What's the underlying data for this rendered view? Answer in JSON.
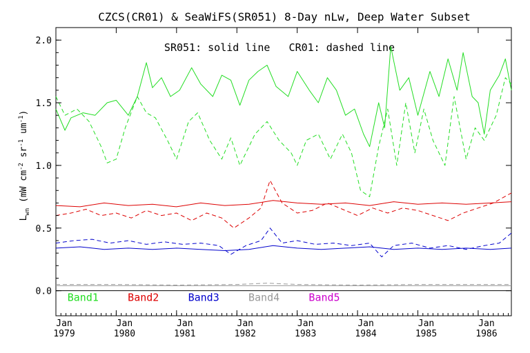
{
  "chart_data": {
    "type": "line",
    "title": "CZCS(CR01) & SeaWiFS(SR051) 8-Day nLw, Deep Water Subset",
    "annotation": "SR051: solid line   CR01: dashed line",
    "ylabel": {
      "base": "L",
      "sub": "wn",
      "units_open": " (mW cm",
      "exp1": "-2",
      "mid1": " sr",
      "exp2": "-1",
      "mid2": " um",
      "exp3": "-1",
      "units_close": ")"
    },
    "xlim": [
      1979.0,
      1986.55
    ],
    "ylim": [
      -0.2,
      2.1
    ],
    "yticks": [
      {
        "value": 0.0,
        "label": "0.0"
      },
      {
        "value": 0.5,
        "label": "0.5"
      },
      {
        "value": 1.0,
        "label": "1.0"
      },
      {
        "value": 1.5,
        "label": "1.5"
      },
      {
        "value": 2.0,
        "label": "2.0"
      }
    ],
    "xticks": [
      {
        "value": 1979.0,
        "month": "Jan",
        "year": "1979"
      },
      {
        "value": 1980.0,
        "month": "Jan",
        "year": "1980"
      },
      {
        "value": 1981.0,
        "month": "Jan",
        "year": "1981"
      },
      {
        "value": 1982.0,
        "month": "Jan",
        "year": "1982"
      },
      {
        "value": 1983.0,
        "month": "Jan",
        "year": "1983"
      },
      {
        "value": 1984.0,
        "month": "Jan",
        "year": "1984"
      },
      {
        "value": 1985.0,
        "month": "Jan",
        "year": "1985"
      },
      {
        "value": 1986.0,
        "month": "Jan",
        "year": "1986"
      }
    ],
    "zero_line": 0.0,
    "legend": [
      {
        "label": "Band1",
        "color": "#22dd22",
        "x": 1979.45
      },
      {
        "label": "Band2",
        "color": "#dd0000",
        "x": 1980.45
      },
      {
        "label": "Band3",
        "color": "#0000cc",
        "x": 1981.45
      },
      {
        "label": "Band4",
        "color": "#999999",
        "x": 1982.45
      },
      {
        "label": "Band5",
        "color": "#cc00cc",
        "x": 1983.45
      }
    ],
    "legend_y": -0.05,
    "series": [
      {
        "band": "Band1",
        "sensor": "SR051",
        "style": "solid",
        "color": "#22dd22",
        "x": [
          1979.0,
          1979.15,
          1979.25,
          1979.45,
          1979.65,
          1979.85,
          1980.0,
          1980.2,
          1980.35,
          1980.5,
          1980.6,
          1980.75,
          1980.9,
          1981.05,
          1981.25,
          1981.4,
          1981.6,
          1981.75,
          1981.9,
          1982.05,
          1982.2,
          1982.35,
          1982.5,
          1982.65,
          1982.85,
          1983.0,
          1983.2,
          1983.35,
          1983.5,
          1983.65,
          1983.8,
          1983.95,
          1984.1,
          1984.2,
          1984.35,
          1984.45,
          1984.55,
          1984.7,
          1984.85,
          1985.0,
          1985.2,
          1985.35,
          1985.5,
          1985.65,
          1985.75,
          1985.9,
          1986.0,
          1986.1,
          1986.2,
          1986.35,
          1986.45,
          1986.55
        ],
        "y": [
          1.45,
          1.28,
          1.38,
          1.42,
          1.4,
          1.5,
          1.52,
          1.4,
          1.55,
          1.82,
          1.62,
          1.7,
          1.55,
          1.6,
          1.78,
          1.65,
          1.55,
          1.72,
          1.68,
          1.48,
          1.68,
          1.75,
          1.8,
          1.63,
          1.55,
          1.75,
          1.6,
          1.5,
          1.7,
          1.6,
          1.4,
          1.45,
          1.25,
          1.15,
          1.5,
          1.3,
          1.95,
          1.6,
          1.7,
          1.4,
          1.75,
          1.55,
          1.85,
          1.6,
          1.9,
          1.55,
          1.5,
          1.25,
          1.6,
          1.72,
          1.85,
          1.6
        ]
      },
      {
        "band": "Band1",
        "sensor": "CR01",
        "style": "dashed",
        "color": "#22dd22",
        "x": [
          1979.0,
          1979.15,
          1979.35,
          1979.55,
          1979.75,
          1979.85,
          1980.0,
          1980.15,
          1980.35,
          1980.5,
          1980.65,
          1980.85,
          1981.0,
          1981.2,
          1981.35,
          1981.55,
          1981.75,
          1981.9,
          1982.05,
          1982.3,
          1982.5,
          1982.7,
          1982.9,
          1983.0,
          1983.15,
          1983.35,
          1983.55,
          1983.75,
          1983.9,
          1984.05,
          1984.2,
          1984.35,
          1984.5,
          1984.65,
          1984.8,
          1984.95,
          1985.1,
          1985.25,
          1985.45,
          1985.6,
          1985.8,
          1985.95,
          1986.1,
          1986.3,
          1986.45,
          1986.55
        ],
        "y": [
          1.55,
          1.4,
          1.45,
          1.35,
          1.15,
          1.02,
          1.05,
          1.3,
          1.55,
          1.42,
          1.38,
          1.2,
          1.05,
          1.35,
          1.42,
          1.2,
          1.05,
          1.22,
          1.0,
          1.25,
          1.35,
          1.2,
          1.1,
          1.0,
          1.2,
          1.25,
          1.05,
          1.25,
          1.1,
          0.8,
          0.75,
          1.15,
          1.45,
          1.0,
          1.5,
          1.1,
          1.45,
          1.2,
          1.0,
          1.55,
          1.05,
          1.3,
          1.2,
          1.4,
          1.7,
          1.65
        ]
      },
      {
        "band": "Band2",
        "sensor": "SR051",
        "style": "solid",
        "color": "#dd0000",
        "x": [
          1979.0,
          1979.4,
          1979.8,
          1980.2,
          1980.6,
          1981.0,
          1981.4,
          1981.8,
          1982.2,
          1982.6,
          1983.0,
          1983.4,
          1983.8,
          1984.2,
          1984.6,
          1985.0,
          1985.4,
          1985.8,
          1986.2,
          1986.55
        ],
        "y": [
          0.68,
          0.67,
          0.7,
          0.68,
          0.69,
          0.67,
          0.7,
          0.68,
          0.69,
          0.72,
          0.7,
          0.69,
          0.7,
          0.68,
          0.71,
          0.69,
          0.7,
          0.69,
          0.7,
          0.71
        ]
      },
      {
        "band": "Band2",
        "sensor": "CR01",
        "style": "dashed",
        "color": "#dd0000",
        "x": [
          1979.0,
          1979.25,
          1979.5,
          1979.75,
          1980.0,
          1980.25,
          1980.5,
          1980.75,
          1981.0,
          1981.25,
          1981.5,
          1981.75,
          1981.95,
          1982.2,
          1982.4,
          1982.55,
          1982.75,
          1983.0,
          1983.25,
          1983.5,
          1983.75,
          1984.0,
          1984.25,
          1984.5,
          1984.75,
          1985.0,
          1985.25,
          1985.5,
          1985.75,
          1986.0,
          1986.25,
          1986.55
        ],
        "y": [
          0.6,
          0.62,
          0.65,
          0.6,
          0.62,
          0.58,
          0.64,
          0.6,
          0.62,
          0.56,
          0.62,
          0.58,
          0.5,
          0.58,
          0.66,
          0.88,
          0.7,
          0.62,
          0.64,
          0.7,
          0.65,
          0.6,
          0.66,
          0.62,
          0.66,
          0.64,
          0.6,
          0.56,
          0.62,
          0.66,
          0.7,
          0.78
        ]
      },
      {
        "band": "Band3",
        "sensor": "SR051",
        "style": "solid",
        "color": "#0000cc",
        "x": [
          1979.0,
          1979.4,
          1979.8,
          1980.2,
          1980.6,
          1981.0,
          1981.4,
          1981.8,
          1982.2,
          1982.6,
          1983.0,
          1983.4,
          1983.8,
          1984.2,
          1984.6,
          1985.0,
          1985.4,
          1985.8,
          1986.2,
          1986.55
        ],
        "y": [
          0.34,
          0.35,
          0.33,
          0.34,
          0.33,
          0.34,
          0.33,
          0.32,
          0.33,
          0.36,
          0.34,
          0.33,
          0.34,
          0.35,
          0.33,
          0.34,
          0.33,
          0.34,
          0.33,
          0.34
        ]
      },
      {
        "band": "Band3",
        "sensor": "CR01",
        "style": "dashed",
        "color": "#0000cc",
        "x": [
          1979.0,
          1979.3,
          1979.6,
          1979.9,
          1980.2,
          1980.5,
          1980.8,
          1981.1,
          1981.4,
          1981.7,
          1981.9,
          1982.15,
          1982.4,
          1982.55,
          1982.75,
          1983.0,
          1983.3,
          1983.6,
          1983.9,
          1984.2,
          1984.4,
          1984.6,
          1984.9,
          1985.2,
          1985.5,
          1985.8,
          1986.1,
          1986.35,
          1986.55
        ],
        "y": [
          0.38,
          0.4,
          0.41,
          0.38,
          0.4,
          0.37,
          0.39,
          0.37,
          0.38,
          0.36,
          0.29,
          0.36,
          0.4,
          0.5,
          0.38,
          0.4,
          0.37,
          0.38,
          0.36,
          0.38,
          0.27,
          0.36,
          0.38,
          0.34,
          0.36,
          0.33,
          0.36,
          0.38,
          0.46
        ]
      },
      {
        "band": "Band4",
        "sensor": "SR051",
        "style": "solid",
        "color": "#999999",
        "x": [
          1979.0,
          1980.0,
          1981.0,
          1982.0,
          1983.0,
          1984.0,
          1985.0,
          1986.0,
          1986.55
        ],
        "y": [
          0.04,
          0.04,
          0.04,
          0.04,
          0.04,
          0.04,
          0.04,
          0.04,
          0.04
        ]
      },
      {
        "band": "Band4",
        "sensor": "CR01",
        "style": "dashed",
        "color": "#999999",
        "x": [
          1979.0,
          1980.0,
          1981.0,
          1982.0,
          1982.5,
          1983.0,
          1984.0,
          1985.0,
          1986.0,
          1986.55
        ],
        "y": [
          0.05,
          0.05,
          0.045,
          0.05,
          0.06,
          0.05,
          0.045,
          0.05,
          0.05,
          0.05
        ]
      }
    ]
  }
}
